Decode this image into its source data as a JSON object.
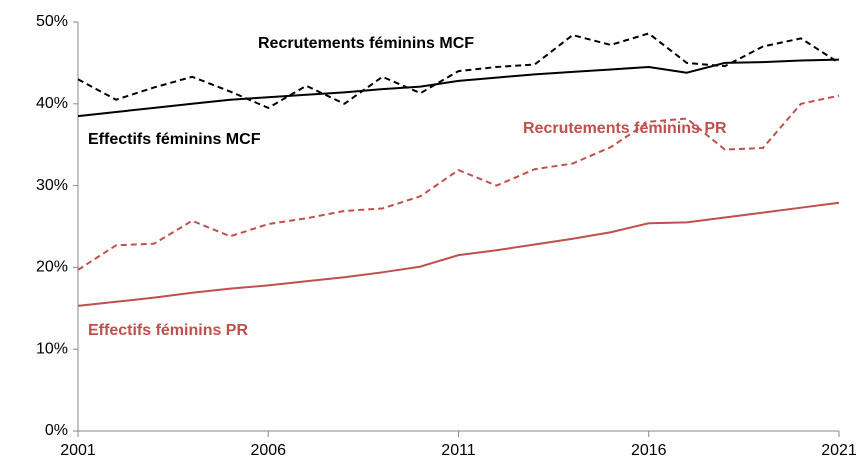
{
  "chart_data": {
    "type": "line",
    "x": [
      2001,
      2002,
      2003,
      2004,
      2005,
      2006,
      2007,
      2008,
      2009,
      2010,
      2011,
      2012,
      2013,
      2014,
      2015,
      2016,
      2017,
      2018,
      2019,
      2020,
      2021
    ],
    "xlim": [
      2001,
      2021
    ],
    "xticks": [
      2001,
      2006,
      2011,
      2016,
      2021
    ],
    "ylim": [
      0,
      50
    ],
    "yticks": [
      {
        "value": 0,
        "label": "0%"
      },
      {
        "value": 10,
        "label": "10%"
      },
      {
        "value": 20,
        "label": "20%"
      },
      {
        "value": 30,
        "label": "30%"
      },
      {
        "value": 40,
        "label": "40%"
      },
      {
        "value": 50,
        "label": "50%"
      }
    ],
    "grid": false,
    "series": [
      {
        "name": "Recrutements féminins MCF",
        "color": "#000000",
        "dashed": true,
        "values": [
          43,
          40.5,
          42,
          43.3,
          41.5,
          39.5,
          42.2,
          40,
          43.3,
          41.3,
          44,
          44.5,
          44.8,
          48.4,
          47.2,
          48.6,
          45,
          44.6,
          47,
          48,
          45
        ]
      },
      {
        "name": "Effectifs féminins MCF",
        "color": "#000000",
        "dashed": false,
        "values": [
          38.5,
          39,
          39.5,
          40,
          40.5,
          40.8,
          41.1,
          41.4,
          41.8,
          42.1,
          42.8,
          43.2,
          43.6,
          43.9,
          44.2,
          44.5,
          43.8,
          45,
          45.1,
          45.3,
          45.4
        ]
      },
      {
        "name": "Recrutements féminins PR",
        "color": "#c0504d",
        "dashed": true,
        "values": [
          19.7,
          22.7,
          22.9,
          25.7,
          23.8,
          25.3,
          26,
          26.9,
          27.2,
          28.7,
          31.9,
          30,
          32,
          32.7,
          34.7,
          37.8,
          38.2,
          34.4,
          34.6,
          40,
          41
        ]
      },
      {
        "name": "Effectifs féminins PR",
        "color": "#c0504d",
        "dashed": false,
        "values": [
          15.3,
          15.8,
          16.3,
          16.9,
          17.4,
          17.8,
          18.3,
          18.8,
          19.4,
          20.1,
          21.5,
          22.1,
          22.8,
          23.5,
          24.3,
          25.4,
          25.5,
          26.1,
          26.7,
          27.3,
          27.9
        ]
      }
    ]
  }
}
